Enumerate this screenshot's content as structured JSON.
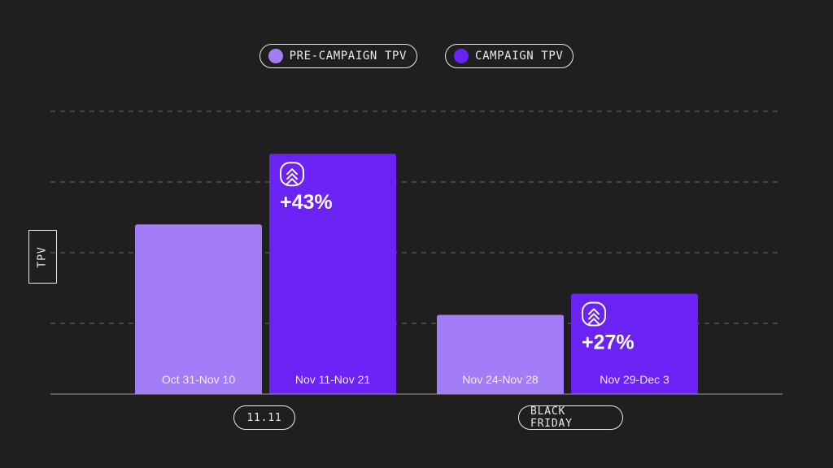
{
  "legend": {
    "items": [
      {
        "label": "PRE-CAMPAIGN TPV",
        "color": "#a37cf8"
      },
      {
        "label": "CAMPAIGN TPV",
        "color": "#6a22f5"
      }
    ]
  },
  "colors": {
    "background": "#1f1f20",
    "pre_campaign": "#a37cf8",
    "campaign": "#6a22f5",
    "text": "#e8e8e8",
    "gridline": "#6b6b6b"
  },
  "chart_data": {
    "type": "bar",
    "ylabel": "TPV",
    "ylim": [
      0,
      100
    ],
    "grid": true,
    "legend_position": "top-center",
    "groups": [
      {
        "label": "11.11",
        "categories": [
          "Oct 31-Nov 10",
          "Nov 11-Nov 21"
        ]
      },
      {
        "label": "BLACK FRIDAY",
        "categories": [
          "Nov 24-Nov 28",
          "Nov 29-Dec 3"
        ]
      }
    ],
    "bars": [
      {
        "category": "Oct 31-Nov 10",
        "series": "PRE-CAMPAIGN TPV",
        "value": 60,
        "annotation": "",
        "icon": ""
      },
      {
        "category": "Nov 11-Nov 21",
        "series": "CAMPAIGN TPV",
        "value": 85,
        "annotation": "+43%",
        "icon": "double-chevron-up-icon"
      },
      {
        "category": "Nov 24-Nov 28",
        "series": "PRE-CAMPAIGN TPV",
        "value": 28,
        "annotation": "",
        "icon": ""
      },
      {
        "category": "Nov 29-Dec 3",
        "series": "CAMPAIGN TPV",
        "value": 35.5,
        "annotation": "+27%",
        "icon": "double-chevron-up-icon"
      }
    ]
  }
}
